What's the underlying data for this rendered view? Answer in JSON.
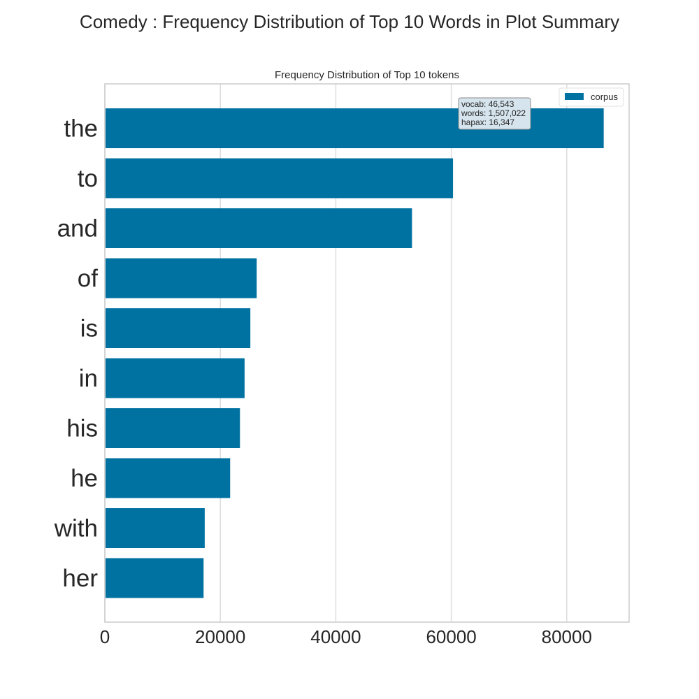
{
  "figure": {
    "suptitle": "Comedy : Frequency Distribution of Top 10 Words in Plot Summary"
  },
  "chart_data": {
    "type": "bar",
    "orientation": "horizontal",
    "title": "Frequency Distribution of Top 10 tokens",
    "xlabel": "",
    "ylabel": "",
    "categories": [
      "the",
      "to",
      "and",
      "of",
      "is",
      "in",
      "his",
      "he",
      "with",
      "her"
    ],
    "series": [
      {
        "name": "corpus",
        "color": "#0072a2",
        "values": [
          86400,
          60300,
          53200,
          26300,
          25200,
          24200,
          23400,
          21700,
          17300,
          17100
        ]
      }
    ],
    "xlim": [
      0,
      90800
    ],
    "xticks": [
      0,
      20000,
      40000,
      60000,
      80000
    ],
    "xtick_labels": [
      "0",
      "20000",
      "40000",
      "60000",
      "80000"
    ],
    "grid": true,
    "legend": {
      "placement": "top-right",
      "entries": [
        "corpus"
      ]
    },
    "annotation": {
      "lines": [
        "vocab: 46,543",
        "words: 1,507,022",
        "hapax: 16,347"
      ]
    }
  }
}
